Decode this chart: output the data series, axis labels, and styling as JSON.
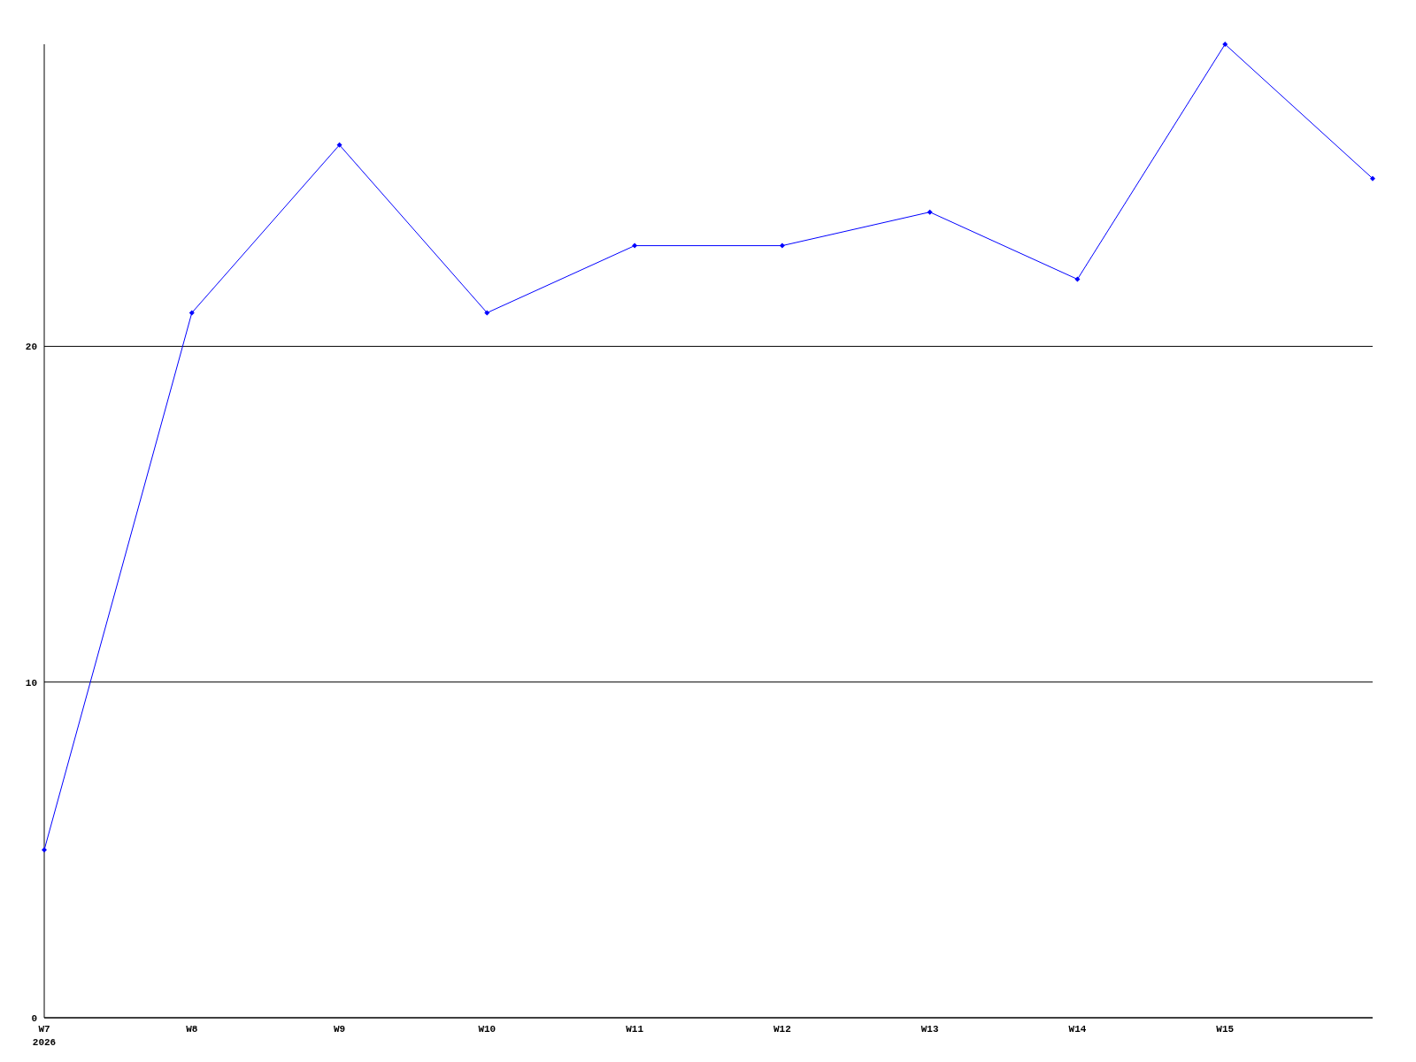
{
  "chart_data": {
    "type": "line",
    "categories": [
      "W7\n2026",
      "W8",
      "W9",
      "W10",
      "W11",
      "W12",
      "W13",
      "W14",
      "W15",
      null
    ],
    "series": [
      {
        "color": "#0000ff",
        "values": [
          5,
          21,
          26,
          21,
          23,
          23,
          24,
          22,
          29,
          25
        ]
      }
    ],
    "ylim": [
      0,
      29
    ],
    "yticks": [
      0,
      10,
      20
    ],
    "grid": "y",
    "marker": "diamond",
    "line_style": "solid"
  }
}
